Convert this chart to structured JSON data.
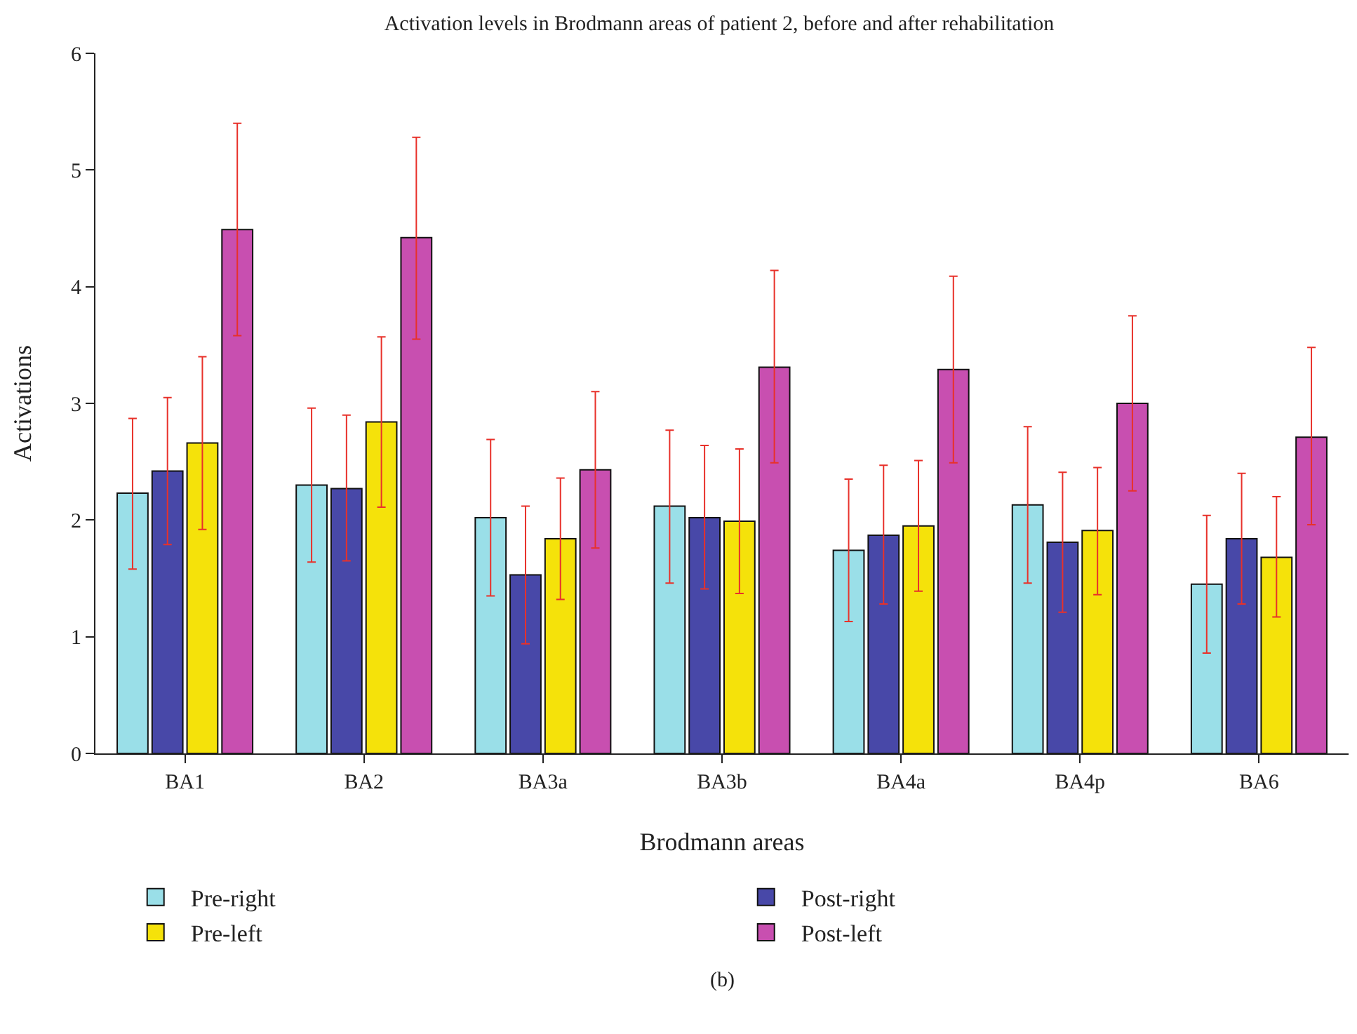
{
  "chart_data": {
    "type": "bar",
    "title": "Activation levels in Brodmann areas of patient 2, before and after rehabilitation",
    "xlabel": "Brodmann areas",
    "ylabel": "Activations",
    "annotations": [
      "(b)"
    ],
    "categories": [
      "BA1",
      "BA2",
      "BA3a",
      "BA3b",
      "BA4a",
      "BA4p",
      "BA6"
    ],
    "series": [
      {
        "name": "Pre-right",
        "color": "#9adfe8",
        "values": [
          2.23,
          2.3,
          2.02,
          2.12,
          1.74,
          2.13,
          1.45
        ],
        "errors": [
          [
            1.58,
            2.87
          ],
          [
            1.64,
            2.96
          ],
          [
            1.35,
            2.69
          ],
          [
            1.46,
            2.77
          ],
          [
            1.13,
            2.35
          ],
          [
            1.46,
            2.8
          ],
          [
            0.86,
            2.04
          ]
        ]
      },
      {
        "name": "Post-right",
        "color": "#4848a8",
        "values": [
          2.42,
          2.27,
          1.53,
          2.02,
          1.87,
          1.81,
          1.84
        ],
        "errors": [
          [
            1.79,
            3.05
          ],
          [
            1.65,
            2.9
          ],
          [
            0.94,
            2.12
          ],
          [
            1.41,
            2.64
          ],
          [
            1.28,
            2.47
          ],
          [
            1.21,
            2.41
          ],
          [
            1.28,
            2.4
          ]
        ]
      },
      {
        "name": "Pre-left",
        "color": "#f5e20a",
        "values": [
          2.66,
          2.84,
          1.84,
          1.99,
          1.95,
          1.91,
          1.68
        ],
        "errors": [
          [
            1.92,
            3.4
          ],
          [
            2.11,
            3.57
          ],
          [
            1.32,
            2.36
          ],
          [
            1.37,
            2.61
          ],
          [
            1.39,
            2.51
          ],
          [
            1.36,
            2.45
          ],
          [
            1.17,
            2.2
          ]
        ]
      },
      {
        "name": "Post-left",
        "color": "#c84fb0",
        "values": [
          4.49,
          4.42,
          2.43,
          3.31,
          3.29,
          3.0,
          2.71
        ],
        "errors": [
          [
            3.58,
            5.4
          ],
          [
            3.55,
            5.28
          ],
          [
            1.76,
            3.1
          ],
          [
            2.49,
            4.14
          ],
          [
            2.49,
            4.09
          ],
          [
            2.25,
            3.75
          ],
          [
            1.96,
            3.48
          ]
        ]
      }
    ],
    "ylim": [
      0,
      6
    ],
    "yticks": [
      0,
      1,
      2,
      3,
      4,
      5,
      6
    ],
    "grid": false,
    "legend": "bottom"
  }
}
